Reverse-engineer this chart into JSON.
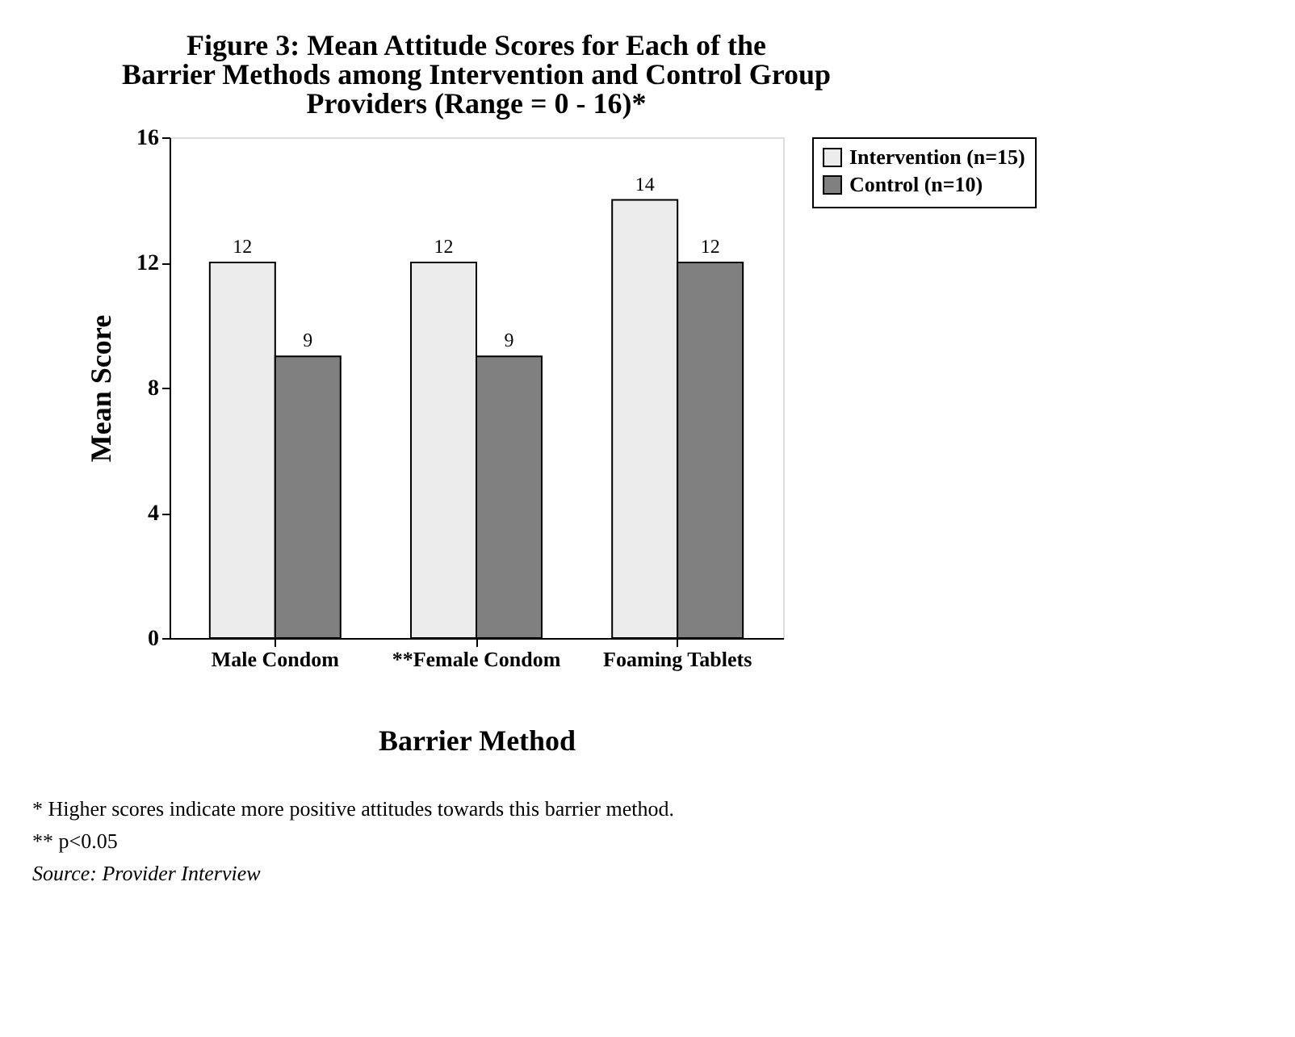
{
  "chart_data": {
    "type": "bar",
    "title": "Figure 3: Mean Attitude Scores for Each of the Barrier Methods among Intervention and Control Group Providers (Range = 0 - 16)*",
    "xlabel": "Barrier Method",
    "ylabel": "Mean Score",
    "categories": [
      "Male Condom",
      "**Female Condom",
      "Foaming Tablets"
    ],
    "series": [
      {
        "name": "Intervention (n=15)",
        "color": "#ececec",
        "values": [
          12,
          12,
          14
        ]
      },
      {
        "name": "Control (n=10)",
        "color": "#808080",
        "values": [
          9,
          9,
          12
        ]
      }
    ],
    "ylim": [
      0,
      16
    ],
    "yticks": [
      0,
      4,
      8,
      12,
      16
    ],
    "grid": false,
    "legend": "right",
    "data_labels": true,
    "annotations": [
      "* Higher scores indicate more positive attitudes towards this barrier method.",
      "** p<0.05",
      "Source: Provider Interview"
    ]
  }
}
